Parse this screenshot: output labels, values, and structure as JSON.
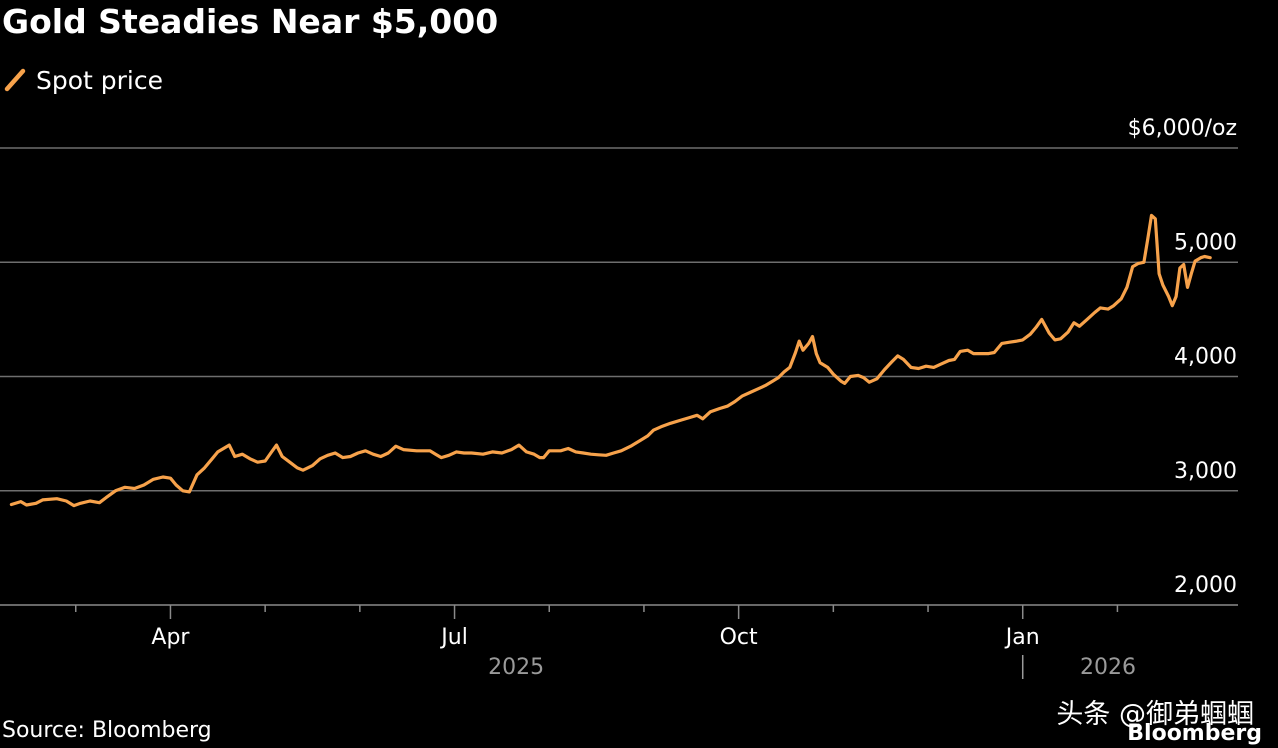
{
  "chart_data": {
    "type": "line",
    "title": "Gold Steadies Near $5,000",
    "legend": [
      {
        "name": "Spot price",
        "color": "#f7a24b"
      }
    ],
    "source": "Source: Bloomberg",
    "ylim": [
      2000,
      6000
    ],
    "yticks": [
      {
        "value": 6000,
        "label": "$6,000/oz"
      },
      {
        "value": 5000,
        "label": "5,000"
      },
      {
        "value": 4000,
        "label": "4,000"
      },
      {
        "value": 3000,
        "label": "3,000"
      },
      {
        "value": 2000,
        "label": "2,000"
      }
    ],
    "xlim": [
      0,
      13.2
    ],
    "x_unit": "months since 2025-02-07",
    "xticks_major": [
      {
        "value": 1.8,
        "label": "Apr"
      },
      {
        "value": 4.8,
        "label": "Jul"
      },
      {
        "value": 7.8,
        "label": "Oct"
      },
      {
        "value": 10.8,
        "label": "Jan"
      }
    ],
    "xticks_minor": [
      0.8,
      2.8,
      3.8,
      5.8,
      6.8,
      8.8,
      9.8,
      11.8
    ],
    "year_labels": [
      {
        "value": 5.45,
        "label": "2025"
      },
      {
        "value": 11.7,
        "label": "2026"
      }
    ],
    "year_divider": 10.8,
    "series": [
      {
        "name": "Spot price",
        "points": [
          [
            0.12,
            2880
          ],
          [
            0.22,
            2905
          ],
          [
            0.28,
            2875
          ],
          [
            0.38,
            2890
          ],
          [
            0.45,
            2920
          ],
          [
            0.6,
            2930
          ],
          [
            0.7,
            2910
          ],
          [
            0.78,
            2870
          ],
          [
            0.85,
            2890
          ],
          [
            0.95,
            2910
          ],
          [
            1.05,
            2895
          ],
          [
            1.12,
            2940
          ],
          [
            1.22,
            3000
          ],
          [
            1.32,
            3030
          ],
          [
            1.42,
            3020
          ],
          [
            1.52,
            3050
          ],
          [
            1.62,
            3100
          ],
          [
            1.72,
            3120
          ],
          [
            1.8,
            3110
          ],
          [
            1.86,
            3050
          ],
          [
            1.93,
            3000
          ],
          [
            2.0,
            2990
          ],
          [
            2.08,
            3140
          ],
          [
            2.16,
            3200
          ],
          [
            2.24,
            3280
          ],
          [
            2.3,
            3340
          ],
          [
            2.36,
            3370
          ],
          [
            2.42,
            3400
          ],
          [
            2.48,
            3300
          ],
          [
            2.56,
            3320
          ],
          [
            2.64,
            3280
          ],
          [
            2.72,
            3250
          ],
          [
            2.8,
            3260
          ],
          [
            2.86,
            3330
          ],
          [
            2.92,
            3400
          ],
          [
            2.98,
            3300
          ],
          [
            3.06,
            3250
          ],
          [
            3.14,
            3200
          ],
          [
            3.2,
            3180
          ],
          [
            3.3,
            3220
          ],
          [
            3.38,
            3280
          ],
          [
            3.46,
            3310
          ],
          [
            3.54,
            3330
          ],
          [
            3.62,
            3290
          ],
          [
            3.7,
            3300
          ],
          [
            3.78,
            3330
          ],
          [
            3.86,
            3350
          ],
          [
            3.94,
            3320
          ],
          [
            4.02,
            3300
          ],
          [
            4.1,
            3330
          ],
          [
            4.18,
            3390
          ],
          [
            4.26,
            3360
          ],
          [
            4.4,
            3350
          ],
          [
            4.54,
            3350
          ],
          [
            4.6,
            3320
          ],
          [
            4.66,
            3290
          ],
          [
            4.74,
            3310
          ],
          [
            4.82,
            3340
          ],
          [
            4.9,
            3330
          ],
          [
            4.98,
            3330
          ],
          [
            5.1,
            3320
          ],
          [
            5.2,
            3340
          ],
          [
            5.3,
            3330
          ],
          [
            5.4,
            3360
          ],
          [
            5.48,
            3400
          ],
          [
            5.56,
            3340
          ],
          [
            5.64,
            3320
          ],
          [
            5.7,
            3290
          ],
          [
            5.74,
            3290
          ],
          [
            5.8,
            3350
          ],
          [
            5.92,
            3350
          ],
          [
            6.0,
            3370
          ],
          [
            6.08,
            3340
          ],
          [
            6.16,
            3330
          ],
          [
            6.24,
            3320
          ],
          [
            6.32,
            3315
          ],
          [
            6.4,
            3310
          ],
          [
            6.48,
            3330
          ],
          [
            6.56,
            3350
          ],
          [
            6.66,
            3390
          ],
          [
            6.76,
            3440
          ],
          [
            6.84,
            3480
          ],
          [
            6.9,
            3530
          ],
          [
            6.98,
            3560
          ],
          [
            7.08,
            3590
          ],
          [
            7.2,
            3620
          ],
          [
            7.28,
            3640
          ],
          [
            7.36,
            3660
          ],
          [
            7.42,
            3630
          ],
          [
            7.5,
            3690
          ],
          [
            7.6,
            3720
          ],
          [
            7.68,
            3740
          ],
          [
            7.76,
            3780
          ],
          [
            7.84,
            3830
          ],
          [
            7.92,
            3860
          ],
          [
            8.0,
            3890
          ],
          [
            8.08,
            3920
          ],
          [
            8.16,
            3960
          ],
          [
            8.22,
            3990
          ],
          [
            8.28,
            4040
          ],
          [
            8.34,
            4080
          ],
          [
            8.4,
            4210
          ],
          [
            8.44,
            4310
          ],
          [
            8.48,
            4230
          ],
          [
            8.54,
            4290
          ],
          [
            8.58,
            4350
          ],
          [
            8.62,
            4200
          ],
          [
            8.66,
            4120
          ],
          [
            8.74,
            4080
          ],
          [
            8.8,
            4020
          ],
          [
            8.88,
            3960
          ],
          [
            8.92,
            3940
          ],
          [
            8.98,
            4000
          ],
          [
            9.06,
            4010
          ],
          [
            9.12,
            3990
          ],
          [
            9.18,
            3950
          ],
          [
            9.26,
            3980
          ],
          [
            9.34,
            4060
          ],
          [
            9.42,
            4130
          ],
          [
            9.48,
            4180
          ],
          [
            9.54,
            4150
          ],
          [
            9.62,
            4080
          ],
          [
            9.7,
            4070
          ],
          [
            9.78,
            4090
          ],
          [
            9.86,
            4080
          ],
          [
            9.94,
            4110
          ],
          [
            10.02,
            4140
          ],
          [
            10.08,
            4150
          ],
          [
            10.14,
            4220
          ],
          [
            10.22,
            4230
          ],
          [
            10.28,
            4200
          ],
          [
            10.36,
            4200
          ],
          [
            10.44,
            4200
          ],
          [
            10.5,
            4210
          ],
          [
            10.58,
            4290
          ],
          [
            10.66,
            4300
          ],
          [
            10.74,
            4310
          ],
          [
            10.8,
            4320
          ],
          [
            10.88,
            4370
          ],
          [
            10.94,
            4430
          ],
          [
            11.0,
            4500
          ],
          [
            11.08,
            4380
          ],
          [
            11.14,
            4320
          ],
          [
            11.2,
            4330
          ],
          [
            11.28,
            4390
          ],
          [
            11.34,
            4470
          ],
          [
            11.4,
            4440
          ],
          [
            11.48,
            4500
          ],
          [
            11.56,
            4560
          ],
          [
            11.62,
            4600
          ],
          [
            11.7,
            4590
          ],
          [
            11.76,
            4620
          ],
          [
            11.84,
            4680
          ],
          [
            11.9,
            4780
          ],
          [
            11.96,
            4960
          ],
          [
            12.02,
            4990
          ],
          [
            12.08,
            5000
          ],
          [
            12.12,
            5200
          ],
          [
            12.16,
            5410
          ],
          [
            12.2,
            5380
          ],
          [
            12.24,
            4900
          ],
          [
            12.28,
            4800
          ],
          [
            12.34,
            4700
          ],
          [
            12.38,
            4620
          ],
          [
            12.42,
            4700
          ],
          [
            12.46,
            4950
          ],
          [
            12.5,
            4980
          ],
          [
            12.54,
            4780
          ],
          [
            12.58,
            4900
          ],
          [
            12.62,
            5010
          ],
          [
            12.68,
            5040
          ],
          [
            12.72,
            5050
          ],
          [
            12.78,
            5040
          ]
        ]
      }
    ]
  },
  "watermark": "头条 @御弟蝈蝈",
  "brand": "Bloomberg"
}
